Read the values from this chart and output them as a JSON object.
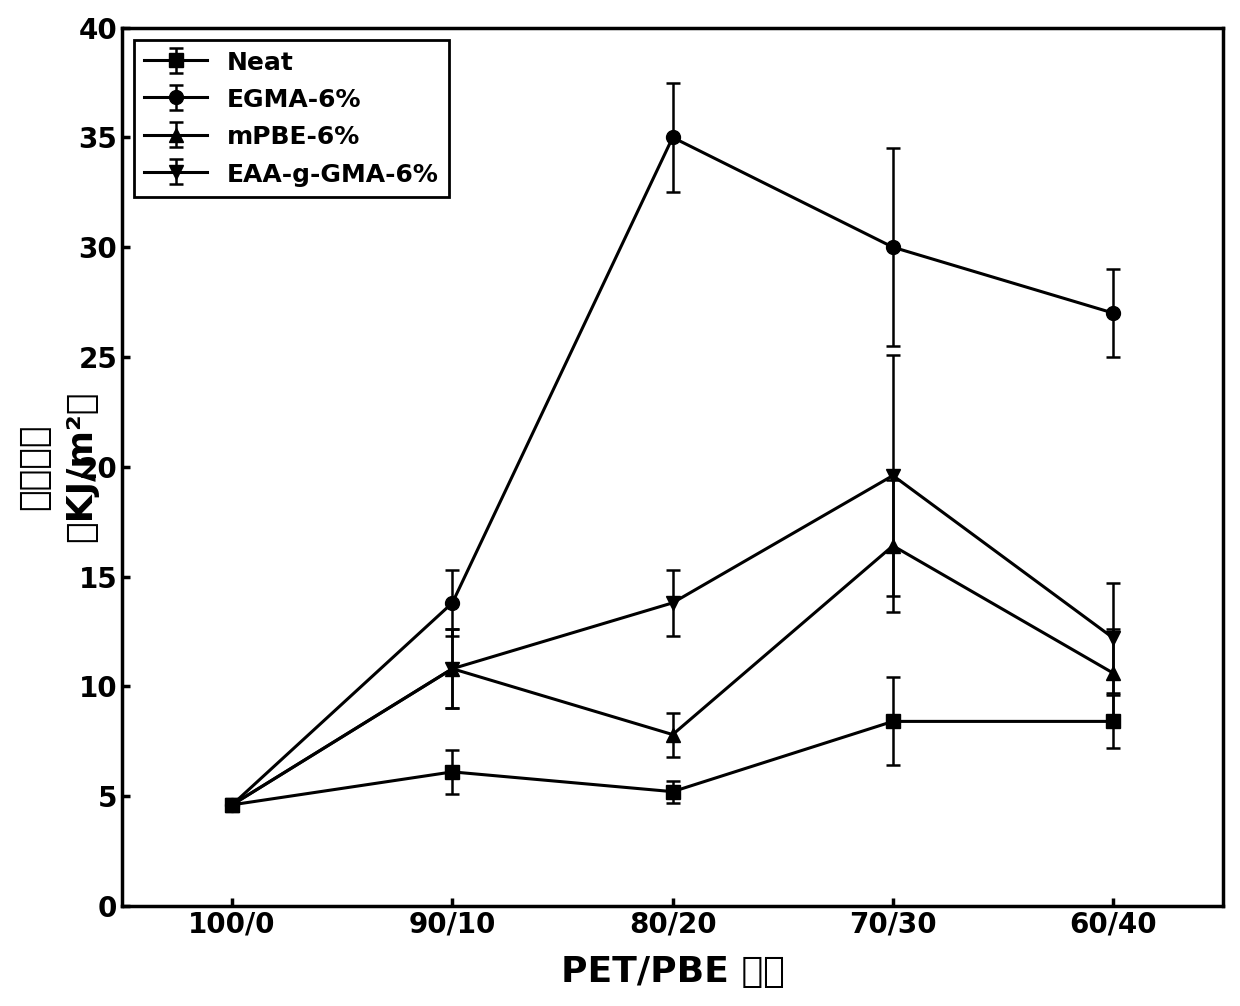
{
  "x_labels": [
    "100/0",
    "90/10",
    "80/20",
    "70/30",
    "60/40"
  ],
  "x_values": [
    0,
    1,
    2,
    3,
    4
  ],
  "series": [
    {
      "label": "Neat",
      "marker": "s",
      "values": [
        4.6,
        6.1,
        5.2,
        8.4,
        8.4
      ],
      "yerr": [
        0.2,
        1.0,
        0.5,
        2.0,
        1.2
      ]
    },
    {
      "label": "EGMA-6%",
      "marker": "o",
      "values": [
        4.6,
        13.8,
        35.0,
        30.0,
        27.0
      ],
      "yerr": [
        0.2,
        1.5,
        2.5,
        4.5,
        2.0
      ]
    },
    {
      "label": "mPBE-6%",
      "marker": "^",
      "values": [
        4.6,
        10.8,
        7.8,
        16.4,
        10.6
      ],
      "yerr": [
        0.2,
        1.8,
        1.0,
        3.0,
        2.0
      ]
    },
    {
      "label": "EAA-g-GMA-6%",
      "marker": "v",
      "values": [
        4.6,
        10.8,
        13.8,
        19.6,
        12.2
      ],
      "yerr": [
        0.2,
        1.8,
        1.5,
        5.5,
        2.5
      ]
    }
  ],
  "xlabel": "PET/PBE 配比",
  "ylabel_chinese": "冲击强度",
  "ylabel_units": "（KJ/m²）",
  "xlim": [
    -0.5,
    4.5
  ],
  "ylim": [
    0,
    40
  ],
  "yticks": [
    0,
    5,
    10,
    15,
    20,
    25,
    30,
    35,
    40
  ],
  "line_color": "#000000",
  "bg_color": "#ffffff",
  "label_fontsize": 26,
  "tick_fontsize": 20,
  "legend_fontsize": 18,
  "linewidth": 2.2,
  "markersize": 10,
  "capsize": 5
}
